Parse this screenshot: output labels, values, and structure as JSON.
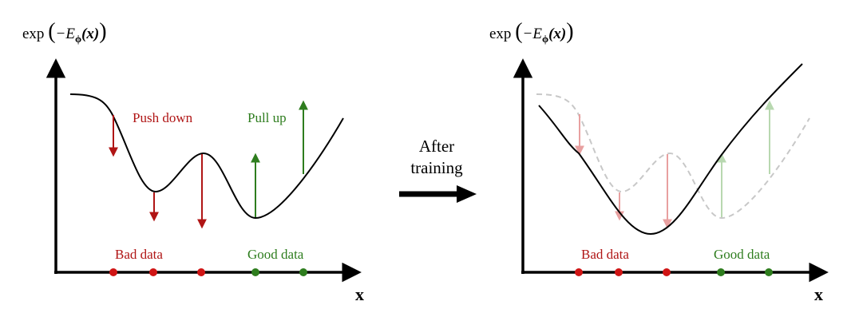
{
  "left_panel": {
    "y_label": {
      "func": "exp",
      "open": "(",
      "energy": "−E",
      "sub": "ϕ",
      "arg": "(x)",
      "close": ")"
    },
    "x_label": "x",
    "push": "Push down",
    "pull": "Pull up",
    "bad": "Bad data",
    "good": "Good data"
  },
  "transition": {
    "line1": "After",
    "line2": "training"
  },
  "right_panel": {
    "y_label": {
      "func": "exp",
      "open": "(",
      "energy": "−E",
      "sub": "ϕ",
      "arg": "(x)",
      "close": ")"
    },
    "x_label": "x",
    "bad": "Bad data",
    "good": "Good data"
  }
}
